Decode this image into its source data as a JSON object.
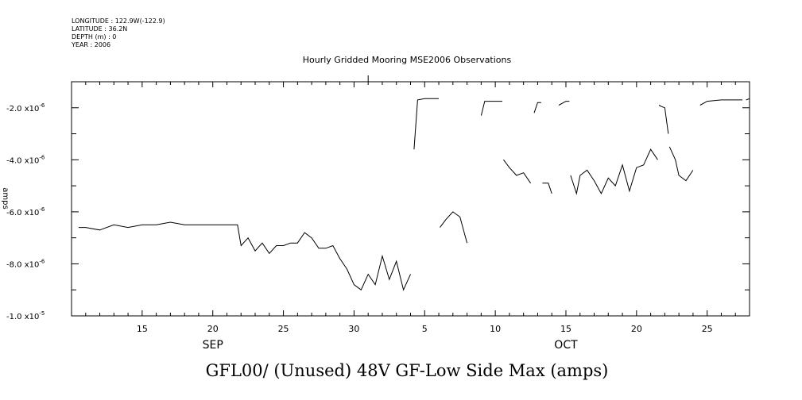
{
  "meta": {
    "longitude": "LONGITUDE : 122.9W(-122.9)",
    "latitude": "LATITUDE : 36.2N",
    "depth": "DEPTH (m) : 0",
    "year": "YEAR : 2006"
  },
  "chart_data": {
    "type": "line",
    "title": "Hourly Gridded Mooring MSE2006 Observations",
    "caption": "GFL00/ (Unused) 48V GF-Low Side Max (amps)",
    "ylabel": "amps",
    "xlabel": "",
    "xlim": [
      "2006-09-10",
      "2006-10-28"
    ],
    "ylim": [
      -1e-05,
      -1e-06
    ],
    "y_ticks": [
      {
        "value": -2e-06,
        "mantissa": "-2.0 x10",
        "exp": "-6"
      },
      {
        "value": -4e-06,
        "mantissa": "-4.0 x10",
        "exp": "-6"
      },
      {
        "value": -6e-06,
        "mantissa": "-6.0 x10",
        "exp": "-6"
      },
      {
        "value": -8e-06,
        "mantissa": "-8.0 x10",
        "exp": "-6"
      },
      {
        "value": -1e-05,
        "mantissa": "-1.0 x10",
        "exp": "-5"
      }
    ],
    "x_tick_labels": [
      "15",
      "20",
      "25",
      "30",
      "5",
      "10",
      "15",
      "20",
      "25"
    ],
    "month_labels": [
      "SEP",
      "OCT"
    ],
    "grid": false,
    "series": [
      {
        "segments": [
          {
            "x": [
              "2006-09-10T12",
              "2006-09-11",
              "2006-09-12",
              "2006-09-13",
              "2006-09-14",
              "2006-09-15",
              "2006-09-16",
              "2006-09-17",
              "2006-09-18",
              "2006-09-19",
              "2006-09-20",
              "2006-09-21",
              "2006-09-21T18",
              "2006-09-22",
              "2006-09-22T12",
              "2006-09-23",
              "2006-09-23T12",
              "2006-09-24",
              "2006-09-24T12",
              "2006-09-25",
              "2006-09-25T12",
              "2006-09-26",
              "2006-09-26T12",
              "2006-09-27",
              "2006-09-27T12",
              "2006-09-28",
              "2006-09-28T12",
              "2006-09-29",
              "2006-09-29T12",
              "2006-09-30",
              "2006-09-30T12",
              "2006-10-01",
              "2006-10-01T12",
              "2006-10-02",
              "2006-10-02T12",
              "2006-10-03",
              "2006-10-03T12",
              "2006-10-04"
            ],
            "y": [
              -6.6e-06,
              -6.6e-06,
              -6.7e-06,
              -6.5e-06,
              -6.6e-06,
              -6.5e-06,
              -6.5e-06,
              -6.4e-06,
              -6.5e-06,
              -6.5e-06,
              -6.5e-06,
              -6.5e-06,
              -6.5e-06,
              -7.3e-06,
              -7e-06,
              -7.5e-06,
              -7.2e-06,
              -7.6e-06,
              -7.3e-06,
              -7.3e-06,
              -7.2e-06,
              -7.2e-06,
              -6.8e-06,
              -7e-06,
              -7.4e-06,
              -7.4e-06,
              -7.3e-06,
              -7.8e-06,
              -8.2e-06,
              -8.8e-06,
              -9e-06,
              -8.4e-06,
              -8.8e-06,
              -7.7e-06,
              -8.6e-06,
              -7.9e-06,
              -9e-06,
              -8.4e-06
            ]
          },
          {
            "x": [
              "2006-10-04T06",
              "2006-10-04T12",
              "2006-10-05",
              "2006-10-05T12",
              "2006-10-06"
            ],
            "y": [
              -3.6e-06,
              -1.7e-06,
              -1.65e-06,
              -1.65e-06,
              -1.65e-06
            ]
          },
          {
            "x": [
              "2006-10-06T02",
              "2006-10-06T12",
              "2006-10-07",
              "2006-10-07T12",
              "2006-10-08"
            ],
            "y": [
              -6.6e-06,
              -6.3e-06,
              -6e-06,
              -6.2e-06,
              -7.2e-06
            ]
          },
          {
            "x": [
              "2006-10-09",
              "2006-10-09T06",
              "2006-10-09T18",
              "2006-10-10",
              "2006-10-10T12"
            ],
            "y": [
              -2.3e-06,
              -1.75e-06,
              -1.75e-06,
              -1.75e-06,
              -1.75e-06
            ]
          },
          {
            "x": [
              "2006-10-10T14",
              "2006-10-11",
              "2006-10-11T12",
              "2006-10-12",
              "2006-10-12T12"
            ],
            "y": [
              -4e-06,
              -4.3e-06,
              -4.6e-06,
              -4.5e-06,
              -4.9e-06
            ]
          },
          {
            "x": [
              "2006-10-12T18",
              "2006-10-13",
              "2006-10-13T06"
            ],
            "y": [
              -2.2e-06,
              -1.8e-06,
              -1.8e-06
            ]
          },
          {
            "x": [
              "2006-10-13T08",
              "2006-10-13T18",
              "2006-10-14"
            ],
            "y": [
              -4.9e-06,
              -4.9e-06,
              -5.3e-06
            ]
          },
          {
            "x": [
              "2006-10-14T12",
              "2006-10-15",
              "2006-10-15T06"
            ],
            "y": [
              -1.9e-06,
              -1.75e-06,
              -1.75e-06
            ]
          },
          {
            "x": [
              "2006-10-15T08",
              "2006-10-15T18",
              "2006-10-16",
              "2006-10-16T12",
              "2006-10-17",
              "2006-10-17T12",
              "2006-10-18",
              "2006-10-18T12",
              "2006-10-19",
              "2006-10-19T12",
              "2006-10-20",
              "2006-10-20T12",
              "2006-10-21",
              "2006-10-21T12"
            ],
            "y": [
              -4.6e-06,
              -5.3e-06,
              -4.6e-06,
              -4.4e-06,
              -4.8e-06,
              -5.3e-06,
              -4.7e-06,
              -5e-06,
              -4.2e-06,
              -5.2e-06,
              -4.3e-06,
              -4.2e-06,
              -3.6e-06,
              -4e-06
            ]
          },
          {
            "x": [
              "2006-10-21T14",
              "2006-10-21T18",
              "2006-10-22",
              "2006-10-22T06"
            ],
            "y": [
              -1.9e-06,
              -1.95e-06,
              -2e-06,
              -3e-06
            ]
          },
          {
            "x": [
              "2006-10-22T08",
              "2006-10-22T18",
              "2006-10-23",
              "2006-10-23T12",
              "2006-10-24"
            ],
            "y": [
              -3.5e-06,
              -4e-06,
              -4.6e-06,
              -4.8e-06,
              -4.4e-06
            ]
          },
          {
            "x": [
              "2006-10-24T12",
              "2006-10-25",
              "2006-10-26",
              "2006-10-27",
              "2006-10-27T12"
            ],
            "y": [
              -1.9e-06,
              -1.75e-06,
              -1.7e-06,
              -1.7e-06,
              -1.7e-06
            ]
          },
          {
            "x": [
              "2006-10-27T18",
              "2006-10-28"
            ],
            "y": [
              -1.7e-06,
              -1.65e-06
            ]
          }
        ]
      }
    ]
  }
}
